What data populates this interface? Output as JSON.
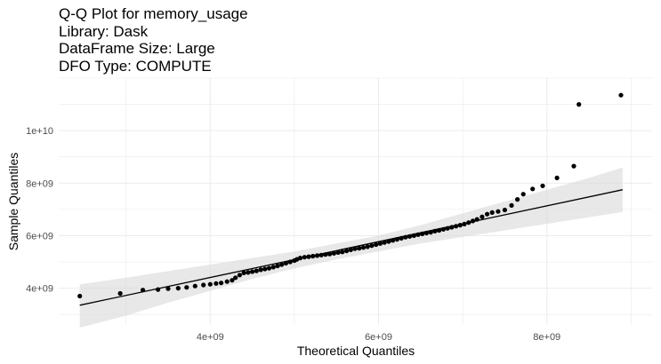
{
  "title_lines": [
    "Q-Q Plot for memory_usage",
    "Library: Dask",
    "DataFrame Size: Large",
    "DFO Type: COMPUTE"
  ],
  "chart_data": {
    "type": "scatter",
    "title": "Q-Q Plot for memory_usage\nLibrary: Dask\nDataFrame Size: Large\nDFO Type: COMPUTE",
    "xlabel": "Theoretical Quantiles",
    "ylabel": "Sample Quantiles",
    "xlim": [
      2200000000.0,
      9250000000.0
    ],
    "ylim": [
      2600000000.0,
      12000000000.0
    ],
    "x_ticks": [
      4000000000.0,
      6000000000.0,
      8000000000.0
    ],
    "x_tick_labels": [
      "4e+09",
      "6e+09",
      "8e+09"
    ],
    "y_ticks": [
      4000000000.0,
      6000000000.0,
      8000000000.0,
      10000000000.0
    ],
    "y_tick_labels": [
      "4e+09",
      "6e+09",
      "8e+09",
      "1e+10"
    ],
    "grid": true,
    "reference_line": {
      "x": [
        2450000000.0,
        8900000000.0
      ],
      "y": [
        3350000000.0,
        7750000000.0
      ]
    },
    "confidence_band": {
      "x": [
        2450000000.0,
        3000000000.0,
        3500000000.0,
        4000000000.0,
        4500000000.0,
        5000000000.0,
        5500000000.0,
        6000000000.0,
        6500000000.0,
        7000000000.0,
        7500000000.0,
        8000000000.0,
        8500000000.0,
        8900000000.0
      ],
      "upper": [
        4150000000.0,
        4400000000.0,
        4650000000.0,
        4900000000.0,
        5150000000.0,
        5400000000.0,
        5700000000.0,
        6000000000.0,
        6400000000.0,
        6850000000.0,
        7300000000.0,
        7750000000.0,
        8200000000.0,
        8600000000.0
      ],
      "lower": [
        2500000000.0,
        2950000000.0,
        3450000000.0,
        3900000000.0,
        4350000000.0,
        4750000000.0,
        5100000000.0,
        5400000000.0,
        5700000000.0,
        5950000000.0,
        6200000000.0,
        6450000000.0,
        6700000000.0,
        6900000000.0
      ]
    },
    "points": [
      [
        2450000000.0,
        3700000000.0
      ],
      [
        2930000000.0,
        3800000000.0
      ],
      [
        3200000000.0,
        3930000000.0
      ],
      [
        3380000000.0,
        3950000000.0
      ],
      [
        3500000000.0,
        3980000000.0
      ],
      [
        3620000000.0,
        4000000000.0
      ],
      [
        3720000000.0,
        4030000000.0
      ],
      [
        3820000000.0,
        4080000000.0
      ],
      [
        3920000000.0,
        4120000000.0
      ],
      [
        4000000000.0,
        4150000000.0
      ],
      [
        4070000000.0,
        4180000000.0
      ],
      [
        4130000000.0,
        4200000000.0
      ],
      [
        4200000000.0,
        4250000000.0
      ],
      [
        4260000000.0,
        4300000000.0
      ],
      [
        4300000000.0,
        4400000000.0
      ],
      [
        4350000000.0,
        4500000000.0
      ],
      [
        4400000000.0,
        4580000000.0
      ],
      [
        4450000000.0,
        4600000000.0
      ],
      [
        4500000000.0,
        4630000000.0
      ],
      [
        4550000000.0,
        4660000000.0
      ],
      [
        4600000000.0,
        4700000000.0
      ],
      [
        4650000000.0,
        4730000000.0
      ],
      [
        4700000000.0,
        4760000000.0
      ],
      [
        4750000000.0,
        4800000000.0
      ],
      [
        4800000000.0,
        4850000000.0
      ],
      [
        4850000000.0,
        4900000000.0
      ],
      [
        4900000000.0,
        4950000000.0
      ],
      [
        4950000000.0,
        5000000000.0
      ],
      [
        5000000000.0,
        5050000000.0
      ],
      [
        5030000000.0,
        5100000000.0
      ],
      [
        5070000000.0,
        5150000000.0
      ],
      [
        5120000000.0,
        5180000000.0
      ],
      [
        5170000000.0,
        5200000000.0
      ],
      [
        5220000000.0,
        5220000000.0
      ],
      [
        5270000000.0,
        5240000000.0
      ],
      [
        5320000000.0,
        5260000000.0
      ],
      [
        5370000000.0,
        5280000000.0
      ],
      [
        5420000000.0,
        5300000000.0
      ],
      [
        5470000000.0,
        5330000000.0
      ],
      [
        5520000000.0,
        5360000000.0
      ],
      [
        5570000000.0,
        5380000000.0
      ],
      [
        5620000000.0,
        5420000000.0
      ],
      [
        5670000000.0,
        5460000000.0
      ],
      [
        5720000000.0,
        5500000000.0
      ],
      [
        5770000000.0,
        5520000000.0
      ],
      [
        5820000000.0,
        5550000000.0
      ],
      [
        5870000000.0,
        5580000000.0
      ],
      [
        5920000000.0,
        5620000000.0
      ],
      [
        5970000000.0,
        5660000000.0
      ],
      [
        6020000000.0,
        5700000000.0
      ],
      [
        6070000000.0,
        5740000000.0
      ],
      [
        6120000000.0,
        5780000000.0
      ],
      [
        6170000000.0,
        5820000000.0
      ],
      [
        6220000000.0,
        5860000000.0
      ],
      [
        6270000000.0,
        5900000000.0
      ],
      [
        6320000000.0,
        5940000000.0
      ],
      [
        6370000000.0,
        5970000000.0
      ],
      [
        6420000000.0,
        6000000000.0
      ],
      [
        6470000000.0,
        6040000000.0
      ],
      [
        6520000000.0,
        6070000000.0
      ],
      [
        6570000000.0,
        6100000000.0
      ],
      [
        6620000000.0,
        6130000000.0
      ],
      [
        6670000000.0,
        6170000000.0
      ],
      [
        6720000000.0,
        6200000000.0
      ],
      [
        6770000000.0,
        6240000000.0
      ],
      [
        6820000000.0,
        6280000000.0
      ],
      [
        6870000000.0,
        6320000000.0
      ],
      [
        6920000000.0,
        6360000000.0
      ],
      [
        6970000000.0,
        6400000000.0
      ],
      [
        7020000000.0,
        6440000000.0
      ],
      [
        7070000000.0,
        6500000000.0
      ],
      [
        7120000000.0,
        6560000000.0
      ],
      [
        7170000000.0,
        6620000000.0
      ],
      [
        7230000000.0,
        6720000000.0
      ],
      [
        7290000000.0,
        6820000000.0
      ],
      [
        7350000000.0,
        6880000000.0
      ],
      [
        7420000000.0,
        6920000000.0
      ],
      [
        7500000000.0,
        6980000000.0
      ],
      [
        7580000000.0,
        7150000000.0
      ],
      [
        7650000000.0,
        7380000000.0
      ],
      [
        7720000000.0,
        7580000000.0
      ],
      [
        7830000000.0,
        7780000000.0
      ],
      [
        7950000000.0,
        7900000000.0
      ],
      [
        8120000000.0,
        8200000000.0
      ],
      [
        8320000000.0,
        8650000000.0
      ],
      [
        8380000000.0,
        11000000000.0
      ],
      [
        8880000000.0,
        11350000000.0
      ]
    ]
  }
}
